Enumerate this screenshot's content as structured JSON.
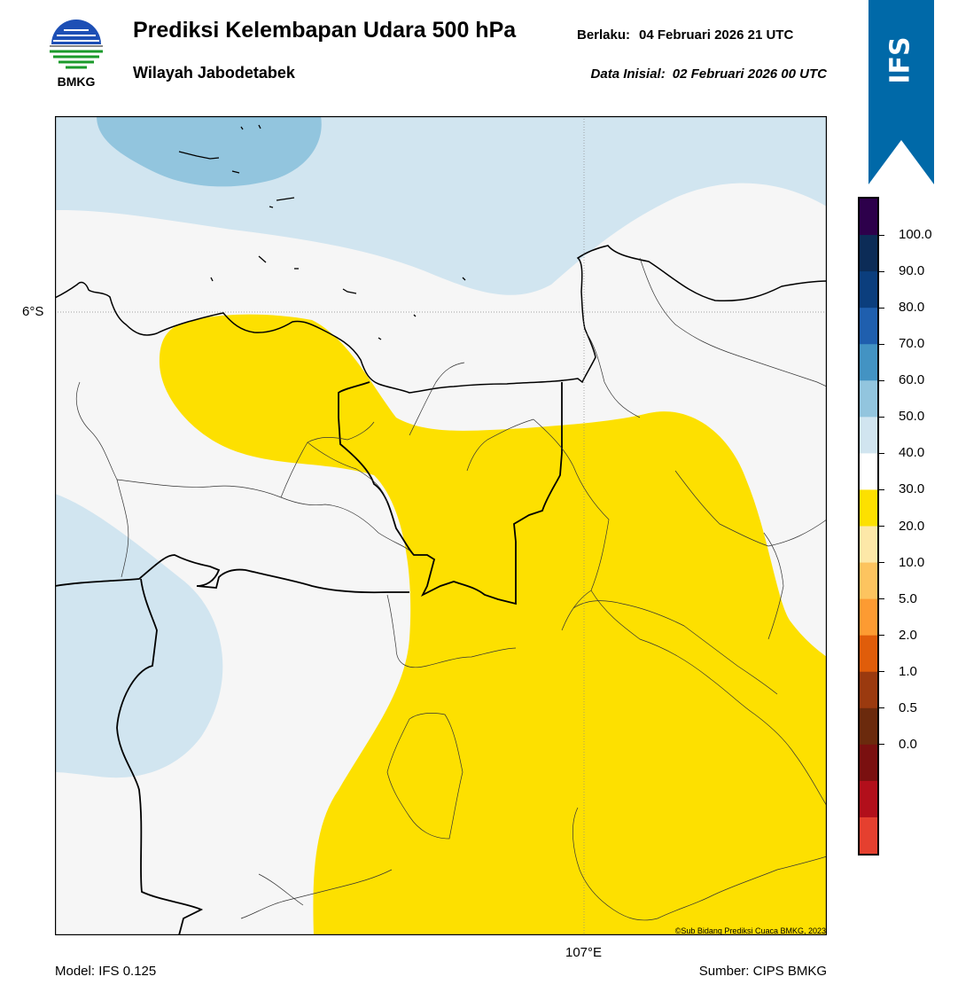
{
  "header": {
    "logo_text": "BMKG",
    "title": "Prediksi Kelembapan Udara 500 hPa",
    "subtitle": "Wilayah Jabodetabek",
    "valid_label": "Berlaku:",
    "valid_value": "04 Februari 2026 21 UTC",
    "init_label": "Data Inisial:",
    "init_value": "02 Februari 2026 00 UTC"
  },
  "ribbon": {
    "label": "IFS",
    "color": "#0069a8"
  },
  "map": {
    "lat_label": "6°S",
    "lon_label": "107°E",
    "credit": "©Sub Bidang Prediksi Cuaca BMKG, 2023",
    "colors": {
      "land_background": "#f6f6f6",
      "humid_light": "#d1e5f0",
      "humid_medium": "#92c5de",
      "dry_yellow": "#fde000"
    },
    "gridlines": "dotted"
  },
  "legend": {
    "labels": [
      "100.0",
      "90.0",
      "80.0",
      "70.0",
      "60.0",
      "50.0",
      "40.0",
      "30.0",
      "20.0",
      "10.0",
      "5.0",
      "2.0",
      "1.0",
      "0.5",
      "0.0"
    ],
    "colors_top_to_bottom": [
      "#2d004b",
      "#0c2c57",
      "#0b3e7d",
      "#1f5fae",
      "#4393c3",
      "#92c5de",
      "#d1e5f0",
      "#ffffff",
      "#fde000",
      "#fde8a8",
      "#fdc45f",
      "#fd9b32",
      "#e05d0a",
      "#9b3a0f",
      "#6b2a0d",
      "#7a1010",
      "#b20f1b",
      "#e5402f"
    ]
  },
  "footer": {
    "model": "Model: IFS 0.125",
    "source": "Sumber: CIPS BMKG"
  }
}
